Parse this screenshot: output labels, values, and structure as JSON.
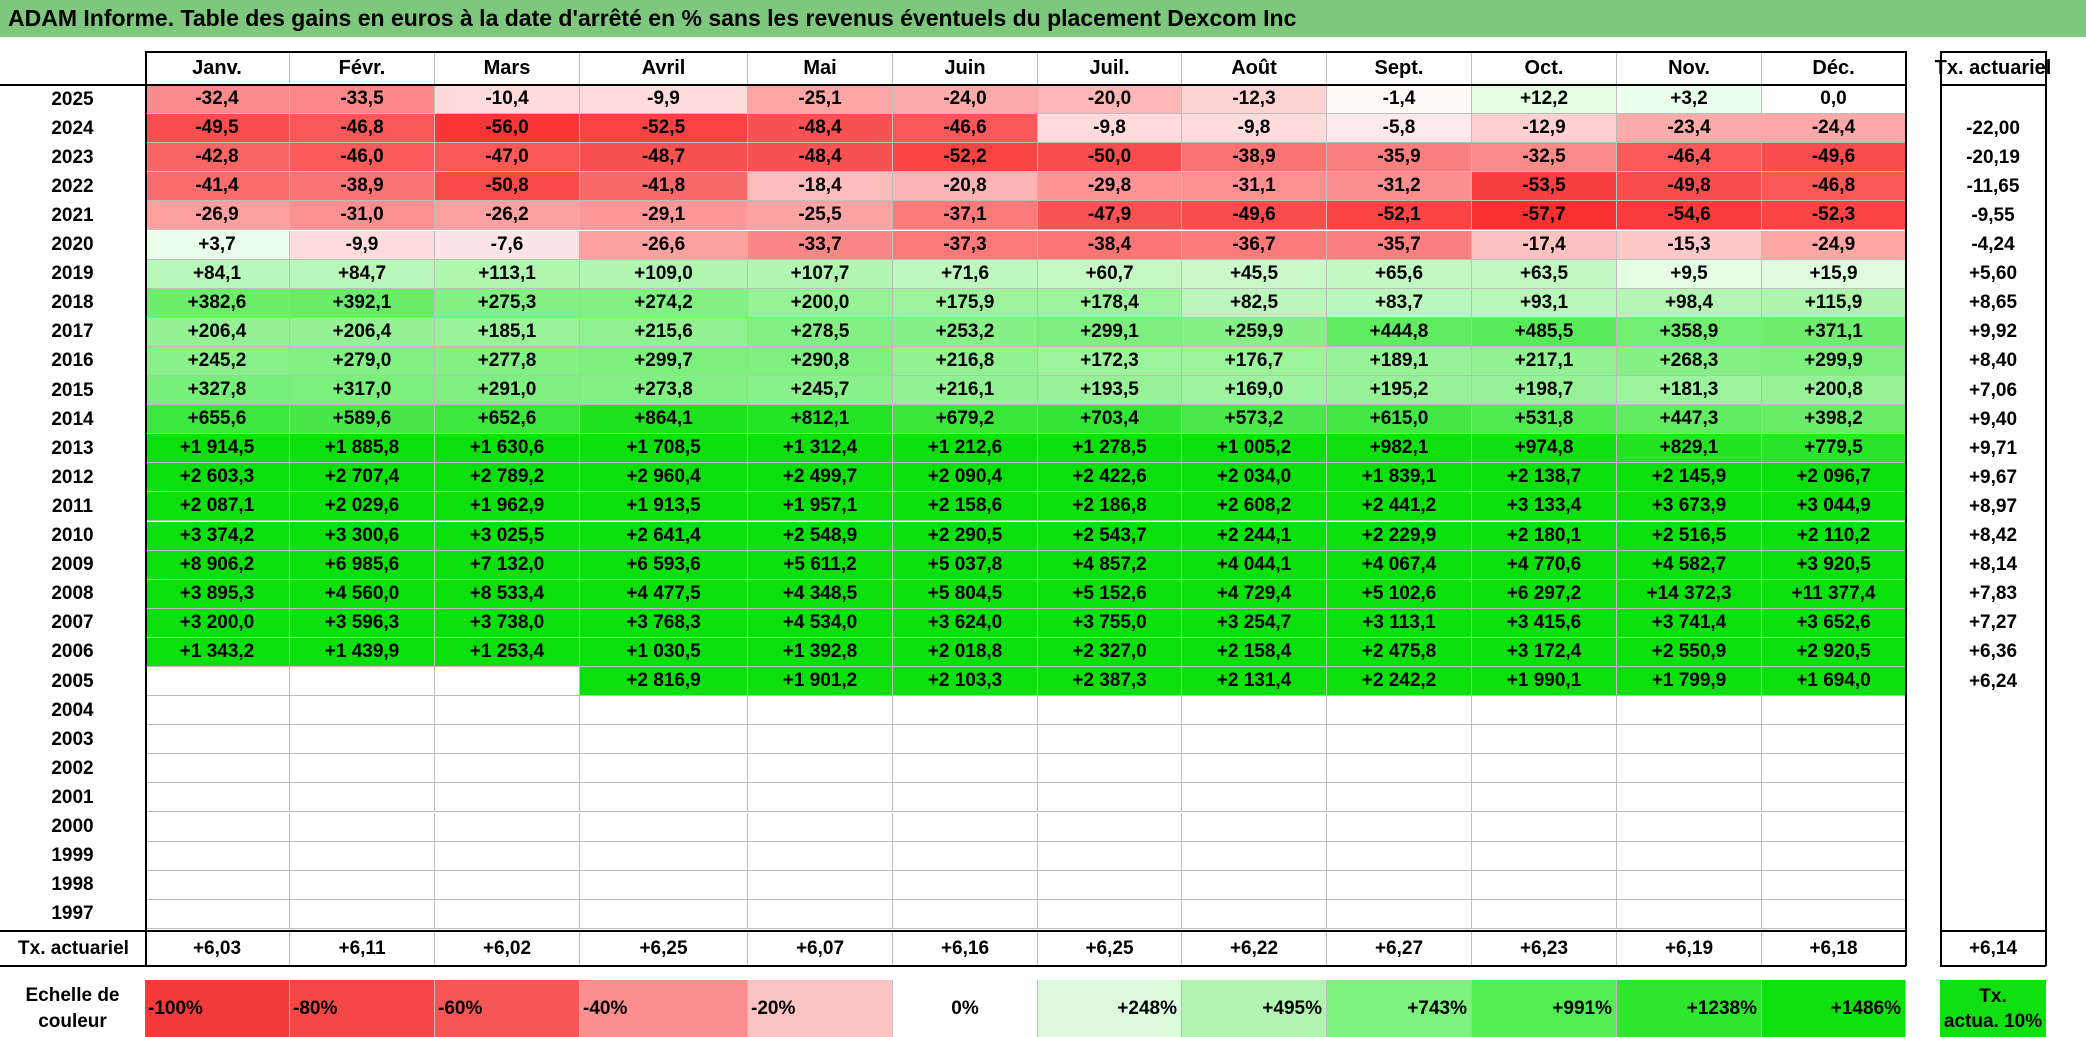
{
  "title": "ADAM Informe. Table des gains en euros à la date d'arrêté en % sans les revenus éventuels du placement Dexcom Inc",
  "chart_data": {
    "type": "table",
    "months": [
      "Janv.",
      "Févr.",
      "Mars",
      "Avril",
      "Mai",
      "Juin",
      "Juil.",
      "Août",
      "Sept.",
      "Oct.",
      "Nov.",
      "Déc."
    ],
    "rate_header": "Tx. actuariel",
    "rows": [
      {
        "year": "2025",
        "values": [
          "-32,4",
          "-33,5",
          "-10,4",
          "-9,9",
          "-25,1",
          "-24,0",
          "-20,0",
          "-12,3",
          "-1,4",
          "+12,2",
          "+3,2",
          "0,0"
        ],
        "rate": ""
      },
      {
        "year": "2024",
        "values": [
          "-49,5",
          "-46,8",
          "-56,0",
          "-52,5",
          "-48,4",
          "-46,6",
          "-9,8",
          "-9,8",
          "-5,8",
          "-12,9",
          "-23,4",
          "-24,4"
        ],
        "rate": "-22,00"
      },
      {
        "year": "2023",
        "values": [
          "-42,8",
          "-46,0",
          "-47,0",
          "-48,7",
          "-48,4",
          "-52,2",
          "-50,0",
          "-38,9",
          "-35,9",
          "-32,5",
          "-46,4",
          "-49,6"
        ],
        "rate": "-20,19"
      },
      {
        "year": "2022",
        "values": [
          "-41,4",
          "-38,9",
          "-50,8",
          "-41,8",
          "-18,4",
          "-20,8",
          "-29,8",
          "-31,1",
          "-31,2",
          "-53,5",
          "-49,8",
          "-46,8"
        ],
        "rate": "-11,65"
      },
      {
        "year": "2021",
        "values": [
          "-26,9",
          "-31,0",
          "-26,2",
          "-29,1",
          "-25,5",
          "-37,1",
          "-47,9",
          "-49,6",
          "-52,1",
          "-57,7",
          "-54,6",
          "-52,3"
        ],
        "rate": "-9,55"
      },
      {
        "year": "2020",
        "values": [
          "+3,7",
          "-9,9",
          "-7,6",
          "-26,6",
          "-33,7",
          "-37,3",
          "-38,4",
          "-36,7",
          "-35,7",
          "-17,4",
          "-15,3",
          "-24,9"
        ],
        "rate": "-4,24"
      },
      {
        "year": "2019",
        "values": [
          "+84,1",
          "+84,7",
          "+113,1",
          "+109,0",
          "+107,7",
          "+71,6",
          "+60,7",
          "+45,5",
          "+65,6",
          "+63,5",
          "+9,5",
          "+15,9"
        ],
        "rate": "+5,60"
      },
      {
        "year": "2018",
        "values": [
          "+382,6",
          "+392,1",
          "+275,3",
          "+274,2",
          "+200,0",
          "+175,9",
          "+178,4",
          "+82,5",
          "+83,7",
          "+93,1",
          "+98,4",
          "+115,9"
        ],
        "rate": "+8,65"
      },
      {
        "year": "2017",
        "values": [
          "+206,4",
          "+206,4",
          "+185,1",
          "+215,6",
          "+278,5",
          "+253,2",
          "+299,1",
          "+259,9",
          "+444,8",
          "+485,5",
          "+358,9",
          "+371,1"
        ],
        "rate": "+9,92"
      },
      {
        "year": "2016",
        "values": [
          "+245,2",
          "+279,0",
          "+277,8",
          "+299,7",
          "+290,8",
          "+216,8",
          "+172,3",
          "+176,7",
          "+189,1",
          "+217,1",
          "+268,3",
          "+299,9"
        ],
        "rate": "+8,40"
      },
      {
        "year": "2015",
        "values": [
          "+327,8",
          "+317,0",
          "+291,0",
          "+273,8",
          "+245,7",
          "+216,1",
          "+193,5",
          "+169,0",
          "+195,2",
          "+198,7",
          "+181,3",
          "+200,8"
        ],
        "rate": "+7,06"
      },
      {
        "year": "2014",
        "values": [
          "+655,6",
          "+589,6",
          "+652,6",
          "+864,1",
          "+812,1",
          "+679,2",
          "+703,4",
          "+573,2",
          "+615,0",
          "+531,8",
          "+447,3",
          "+398,2"
        ],
        "rate": "+9,40"
      },
      {
        "year": "2013",
        "values": [
          "+1 914,5",
          "+1 885,8",
          "+1 630,6",
          "+1 708,5",
          "+1 312,4",
          "+1 212,6",
          "+1 278,5",
          "+1 005,2",
          "+982,1",
          "+974,8",
          "+829,1",
          "+779,5"
        ],
        "rate": "+9,71"
      },
      {
        "year": "2012",
        "values": [
          "+2 603,3",
          "+2 707,4",
          "+2 789,2",
          "+2 960,4",
          "+2 499,7",
          "+2 090,4",
          "+2 422,6",
          "+2 034,0",
          "+1 839,1",
          "+2 138,7",
          "+2 145,9",
          "+2 096,7"
        ],
        "rate": "+9,67"
      },
      {
        "year": "2011",
        "values": [
          "+2 087,1",
          "+2 029,6",
          "+1 962,9",
          "+1 913,5",
          "+1 957,1",
          "+2 158,6",
          "+2 186,8",
          "+2 608,2",
          "+2 441,2",
          "+3 133,4",
          "+3 673,9",
          "+3 044,9"
        ],
        "rate": "+8,97"
      },
      {
        "year": "2010",
        "values": [
          "+3 374,2",
          "+3 300,6",
          "+3 025,5",
          "+2 641,4",
          "+2 548,9",
          "+2 290,5",
          "+2 543,7",
          "+2 244,1",
          "+2 229,9",
          "+2 180,1",
          "+2 516,5",
          "+2 110,2"
        ],
        "rate": "+8,42"
      },
      {
        "year": "2009",
        "values": [
          "+8 906,2",
          "+6 985,6",
          "+7 132,0",
          "+6 593,6",
          "+5 611,2",
          "+5 037,8",
          "+4 857,2",
          "+4 044,1",
          "+4 067,4",
          "+4 770,6",
          "+4 582,7",
          "+3 920,5"
        ],
        "rate": "+8,14"
      },
      {
        "year": "2008",
        "values": [
          "+3 895,3",
          "+4 560,0",
          "+8 533,4",
          "+4 477,5",
          "+4 348,5",
          "+5 804,5",
          "+5 152,6",
          "+4 729,4",
          "+5 102,6",
          "+6 297,2",
          "+14 372,3",
          "+11 377,4"
        ],
        "rate": "+7,83"
      },
      {
        "year": "2007",
        "values": [
          "+3 200,0",
          "+3 596,3",
          "+3 738,0",
          "+3 768,3",
          "+4 534,0",
          "+3 624,0",
          "+3 755,0",
          "+3 254,7",
          "+3 113,1",
          "+3 415,6",
          "+3 741,4",
          "+3 652,6"
        ],
        "rate": "+7,27"
      },
      {
        "year": "2006",
        "values": [
          "+1 343,2",
          "+1 439,9",
          "+1 253,4",
          "+1 030,5",
          "+1 392,8",
          "+2 018,8",
          "+2 327,0",
          "+2 158,4",
          "+2 475,8",
          "+3 172,4",
          "+2 550,9",
          "+2 920,5"
        ],
        "rate": "+6,36"
      },
      {
        "year": "2005",
        "values": [
          "",
          "",
          "",
          "+2 816,9",
          "+1 901,2",
          "+2 103,3",
          "+2 387,3",
          "+2 131,4",
          "+2 242,2",
          "+1 990,1",
          "+1 799,9",
          "+1 694,0"
        ],
        "rate": "+6,24"
      },
      {
        "year": "2004",
        "values": [
          "",
          "",
          "",
          "",
          "",
          "",
          "",
          "",
          "",
          "",
          "",
          ""
        ],
        "rate": ""
      },
      {
        "year": "2003",
        "values": [
          "",
          "",
          "",
          "",
          "",
          "",
          "",
          "",
          "",
          "",
          "",
          ""
        ],
        "rate": ""
      },
      {
        "year": "2002",
        "values": [
          "",
          "",
          "",
          "",
          "",
          "",
          "",
          "",
          "",
          "",
          "",
          ""
        ],
        "rate": ""
      },
      {
        "year": "2001",
        "values": [
          "",
          "",
          "",
          "",
          "",
          "",
          "",
          "",
          "",
          "",
          "",
          ""
        ],
        "rate": ""
      },
      {
        "year": "2000",
        "values": [
          "",
          "",
          "",
          "",
          "",
          "",
          "",
          "",
          "",
          "",
          "",
          ""
        ],
        "rate": ""
      },
      {
        "year": "1999",
        "values": [
          "",
          "",
          "",
          "",
          "",
          "",
          "",
          "",
          "",
          "",
          "",
          ""
        ],
        "rate": ""
      },
      {
        "year": "1998",
        "values": [
          "",
          "",
          "",
          "",
          "",
          "",
          "",
          "",
          "",
          "",
          "",
          ""
        ],
        "rate": ""
      },
      {
        "year": "1997",
        "values": [
          "",
          "",
          "",
          "",
          "",
          "",
          "",
          "",
          "",
          "",
          "",
          ""
        ],
        "rate": ""
      }
    ],
    "footer": {
      "label": "Tx. actuariel",
      "values": [
        "+6,03",
        "+6,11",
        "+6,02",
        "+6,25",
        "+6,07",
        "+6,16",
        "+6,25",
        "+6,22",
        "+6,27",
        "+6,23",
        "+6,19",
        "+6,18"
      ],
      "overall": "+6,14"
    },
    "legend": {
      "label_line1": "Echelle de",
      "label_line2": "couleur",
      "steps": [
        {
          "text": "-100%",
          "color": "#f53a3a"
        },
        {
          "text": "-80%",
          "color": "#f54646"
        },
        {
          "text": "-60%",
          "color": "#f75656"
        },
        {
          "text": "-40%",
          "color": "#fa8e8e"
        },
        {
          "text": "-20%",
          "color": "#fcc3c3"
        },
        {
          "text": "0%",
          "color": "#ffffff"
        },
        {
          "text": "+248%",
          "color": "#dcfadc"
        },
        {
          "text": "+495%",
          "color": "#b2f5b2"
        },
        {
          "text": "+743%",
          "color": "#7ef27e"
        },
        {
          "text": "+991%",
          "color": "#52ed52"
        },
        {
          "text": "+1238%",
          "color": "#2ee62e"
        },
        {
          "text": "+1486%",
          "color": "#0de00d"
        }
      ],
      "rate_line1": "Tx.",
      "rate_line2": "actua. 10%",
      "rate_color": "#10e010"
    }
  }
}
